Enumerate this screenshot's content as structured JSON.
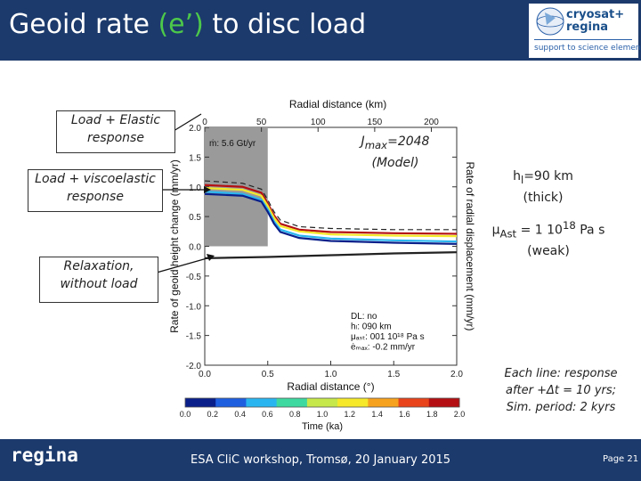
{
  "header": {
    "title_prefix": "Geoid rate ",
    "title_accent": "(e’)",
    "title_suffix": " to disc load",
    "logo": {
      "line1": "cryosat+",
      "line2": "regina",
      "tagline": "support to science element"
    }
  },
  "labels": {
    "elastic": [
      "Load + Elastic",
      "response"
    ],
    "viscoelastic": [
      "Load + viscoelastic",
      "response"
    ],
    "relaxation": [
      "Relaxation,",
      "without load"
    ],
    "jmax": [
      "J",
      "max",
      "=2048",
      "(Model)"
    ],
    "hl": [
      "h",
      "l",
      "=90 km",
      "(thick)"
    ],
    "mu": [
      "μ",
      "Ast",
      " = 1 10",
      "18",
      " Pa s",
      "(weak)"
    ],
    "note": [
      "Each line: response",
      "after +Δt = 10 yrs;",
      "Sim. period: 2 kyrs"
    ]
  },
  "chart_data": {
    "type": "line",
    "title": "",
    "top_axis_label": "Radial distance (km)",
    "top_axis_ticks": [
      "0",
      "50",
      "100",
      "150",
      "200"
    ],
    "xlabel": "Radial distance (°)",
    "x_ticks": [
      "0.0",
      "0.5",
      "1.0",
      "1.5",
      "2.0"
    ],
    "xlim": [
      0,
      2
    ],
    "ylabel": "Rate of geoid height change (mm/yr)",
    "y_ticks": [
      "2.0",
      "1.5",
      "1.0",
      "0.5",
      "0.0",
      "-0.5",
      "-1.0",
      "-1.5",
      "-2.0"
    ],
    "ylim": [
      -2,
      2
    ],
    "right_label": "Rate of radial displacement (mm/yr)",
    "load_annotation": "ṁ: 5.6 Gt/yr",
    "load_disc_extent_deg": 0.5,
    "legend_box": [
      "DL: no",
      "hₗ: 090 km",
      "μₐₛₜ: 001 10¹⁸ Pa s",
      "ėₘₐₓ: -0.2 mm/yr"
    ],
    "colorbar": {
      "label": "Time (ka)",
      "ticks": [
        "0.0",
        "0.2",
        "0.4",
        "0.6",
        "0.8",
        "1.0",
        "1.2",
        "1.4",
        "1.6",
        "1.8",
        "2.0"
      ],
      "colors": [
        "#0a1f8a",
        "#1e5fe0",
        "#29b6f0",
        "#3ed9a0",
        "#c6e84a",
        "#f5e92a",
        "#f7a21e",
        "#e8431a",
        "#b40f12"
      ]
    },
    "series": [
      {
        "name": "",
        "x": [
          0,
          0.3,
          0.45,
          0.5,
          0.55,
          0.6,
          0.75,
          1.0,
          1.5,
          2.0
        ],
        "y": [
          1.03,
          1.0,
          0.9,
          0.72,
          0.52,
          0.38,
          0.28,
          0.24,
          0.22,
          0.21
        ],
        "color": "#b40f12"
      },
      {
        "name": "",
        "x": [
          0,
          0.3,
          0.45,
          0.5,
          0.55,
          0.6,
          0.75,
          1.0,
          1.5,
          2.0
        ],
        "y": [
          0.98,
          0.95,
          0.85,
          0.68,
          0.48,
          0.34,
          0.25,
          0.2,
          0.18,
          0.17
        ],
        "color": "#f5e92a"
      },
      {
        "name": "",
        "x": [
          0,
          0.3,
          0.45,
          0.5,
          0.55,
          0.6,
          0.75,
          1.0,
          1.5,
          2.0
        ],
        "y": [
          0.92,
          0.88,
          0.78,
          0.62,
          0.42,
          0.28,
          0.18,
          0.13,
          0.1,
          0.08
        ],
        "color": "#29b6f0"
      },
      {
        "name": "",
        "x": [
          0,
          0.3,
          0.45,
          0.5,
          0.55,
          0.6,
          0.75,
          1.0,
          1.5,
          2.0
        ],
        "y": [
          0.88,
          0.85,
          0.75,
          0.58,
          0.38,
          0.24,
          0.14,
          0.09,
          0.06,
          0.04
        ],
        "color": "#0a1f8a"
      },
      {
        "name": "",
        "x": [
          0,
          0.3,
          0.45,
          0.5,
          0.55,
          0.6,
          0.75,
          1.0,
          1.5,
          2.0
        ],
        "y": [
          1.1,
          1.06,
          0.96,
          0.78,
          0.58,
          0.44,
          0.33,
          0.3,
          0.28,
          0.28
        ],
        "color": "#222222",
        "dashed": true
      },
      {
        "name": "",
        "x": [
          0,
          0.5,
          1.0,
          1.5,
          2.0
        ],
        "y": [
          -0.2,
          -0.18,
          -0.15,
          -0.12,
          -0.1
        ],
        "color": "#222222"
      }
    ]
  },
  "footer": {
    "brand": "regina",
    "text": "ESA CliC workshop, Tromsø, 20 January 2015",
    "page": "Page 21"
  }
}
